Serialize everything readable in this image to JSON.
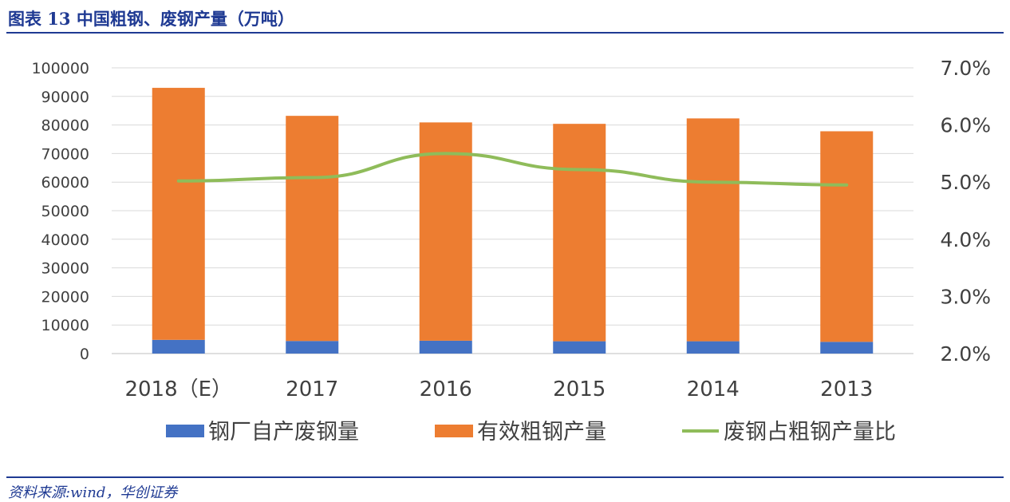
{
  "header": {
    "title": "图表 13   中国粗钢、废钢产量（万吨）"
  },
  "footer": {
    "source": "资料来源:wind，华创证券"
  },
  "colors": {
    "scrap_bar": "#4472c4",
    "effective_bar": "#ed7d31",
    "ratio_line": "#8fbc5a",
    "grid": "#d9d9d9",
    "accent": "#1f3a93"
  },
  "chart_data": {
    "type": "bar",
    "stacked": true,
    "categories": [
      "2018（E）",
      "2017",
      "2016",
      "2015",
      "2014",
      "2013"
    ],
    "series": [
      {
        "name": "钢厂自产废钢量",
        "axis": "left",
        "kind": "bar",
        "values": [
          4800,
          4400,
          4500,
          4300,
          4300,
          4100
        ]
      },
      {
        "name": "有效粗钢产量",
        "axis": "left",
        "kind": "bar",
        "values": [
          88200,
          78800,
          76400,
          76100,
          78000,
          73700
        ]
      },
      {
        "name": "废钢占粗钢产量比",
        "axis": "right",
        "kind": "line",
        "values": [
          5.02,
          5.08,
          5.5,
          5.22,
          5.0,
          4.95
        ]
      }
    ],
    "y_left": {
      "lim": [
        0,
        100000
      ],
      "ticks": [
        "0",
        "10000",
        "20000",
        "30000",
        "40000",
        "50000",
        "60000",
        "70000",
        "80000",
        "90000",
        "100000"
      ]
    },
    "y_right": {
      "lim": [
        2.0,
        7.0
      ],
      "ticks": [
        "2.0%",
        "3.0%",
        "4.0%",
        "5.0%",
        "6.0%",
        "7.0%"
      ]
    },
    "grid": true,
    "legend_position": "bottom"
  }
}
